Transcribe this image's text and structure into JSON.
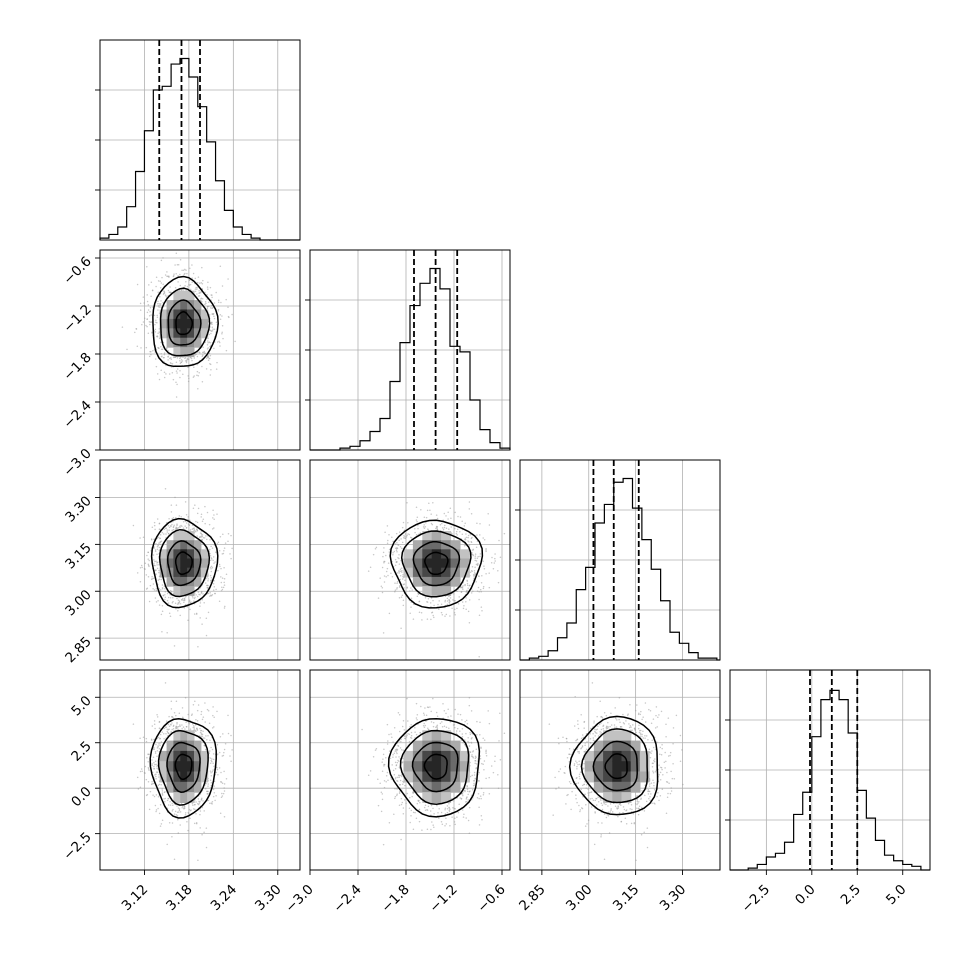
{
  "chart_data": {
    "type": "corner",
    "grid": true,
    "params": [
      {
        "range": [
          3.06,
          3.33
        ],
        "ticks": [
          3.12,
          3.18,
          3.24,
          3.3
        ],
        "tick_labels": [
          "3.12",
          "3.18",
          "3.24",
          "3.30"
        ],
        "mean": 3.173,
        "sd": 0.022,
        "quantiles": [
          3.14,
          3.17,
          3.195
        ],
        "hist": {
          "x": [
            3.06,
            3.072,
            3.084,
            3.096,
            3.108,
            3.12,
            3.132,
            3.144,
            3.156,
            3.168,
            3.18,
            3.192,
            3.204,
            3.216,
            3.228,
            3.24,
            3.252,
            3.264,
            3.276,
            3.288,
            3.3,
            3.312,
            3.324
          ],
          "density": [
            0.01,
            0.03,
            0.07,
            0.18,
            0.37,
            0.59,
            0.81,
            0.83,
            0.95,
            0.98,
            0.88,
            0.72,
            0.53,
            0.32,
            0.16,
            0.07,
            0.03,
            0.01,
            0.0,
            0.0,
            0.0,
            0.0,
            0.0
          ]
        }
      },
      {
        "range": [
          -3.0,
          -0.5
        ],
        "ticks": [
          -3.0,
          -2.4,
          -1.8,
          -1.2,
          -0.6
        ],
        "tick_labels": [
          "−3.0",
          "−2.4",
          "−1.8",
          "−1.2",
          "−0.6"
        ],
        "mean": -1.42,
        "sd": 0.28,
        "quantiles": [
          -1.7,
          -1.43,
          -1.16
        ],
        "hist": {
          "x": [
            -3.0,
            -2.875,
            -2.75,
            -2.625,
            -2.5,
            -2.375,
            -2.25,
            -2.125,
            -2.0,
            -1.875,
            -1.75,
            -1.625,
            -1.5,
            -1.375,
            -1.25,
            -1.125,
            -1.0,
            -0.875,
            -0.75,
            -0.625
          ],
          "density": [
            0.0,
            0.0,
            0.0,
            0.01,
            0.02,
            0.05,
            0.1,
            0.17,
            0.37,
            0.58,
            0.78,
            0.9,
            0.98,
            0.87,
            0.56,
            0.53,
            0.27,
            0.11,
            0.04,
            0.01
          ]
        }
      },
      {
        "range": [
          2.78,
          3.42
        ],
        "ticks": [
          2.85,
          3.0,
          3.15,
          3.3
        ],
        "tick_labels": [
          "2.85",
          "3.00",
          "3.15",
          "3.30"
        ],
        "mean": 3.09,
        "sd": 0.07,
        "quantiles": [
          3.015,
          3.08,
          3.16
        ],
        "hist": {
          "x": [
            2.78,
            2.81,
            2.84,
            2.87,
            2.9,
            2.93,
            2.96,
            2.99,
            3.02,
            3.05,
            3.08,
            3.11,
            3.14,
            3.17,
            3.2,
            3.23,
            3.26,
            3.29,
            3.32,
            3.35,
            3.38,
            3.41
          ],
          "density": [
            0.0,
            0.01,
            0.02,
            0.05,
            0.12,
            0.2,
            0.38,
            0.5,
            0.74,
            0.84,
            0.96,
            0.98,
            0.82,
            0.65,
            0.49,
            0.32,
            0.15,
            0.09,
            0.04,
            0.01,
            0.01,
            0.0
          ]
        }
      },
      {
        "range": [
          -4.5,
          6.5
        ],
        "ticks": [
          -2.5,
          0.0,
          2.5,
          5.0
        ],
        "tick_labels": [
          "−2.5",
          "0.0",
          "2.5",
          "5.0"
        ],
        "mean": 1.2,
        "sd": 1.35,
        "quantiles": [
          -0.1,
          1.1,
          2.5
        ],
        "hist": {
          "x": [
            -4.5,
            -4.0,
            -3.5,
            -3.0,
            -2.5,
            -2.0,
            -1.5,
            -1.0,
            -0.5,
            0.0,
            0.5,
            1.0,
            1.5,
            2.0,
            2.5,
            3.0,
            3.5,
            4.0,
            4.5,
            5.0,
            5.5,
            6.0
          ],
          "density": [
            0.0,
            0.0,
            0.01,
            0.03,
            0.07,
            0.09,
            0.15,
            0.3,
            0.42,
            0.72,
            0.92,
            0.97,
            0.92,
            0.74,
            0.43,
            0.28,
            0.16,
            0.08,
            0.05,
            0.03,
            0.02,
            0.0
          ]
        }
      }
    ]
  }
}
